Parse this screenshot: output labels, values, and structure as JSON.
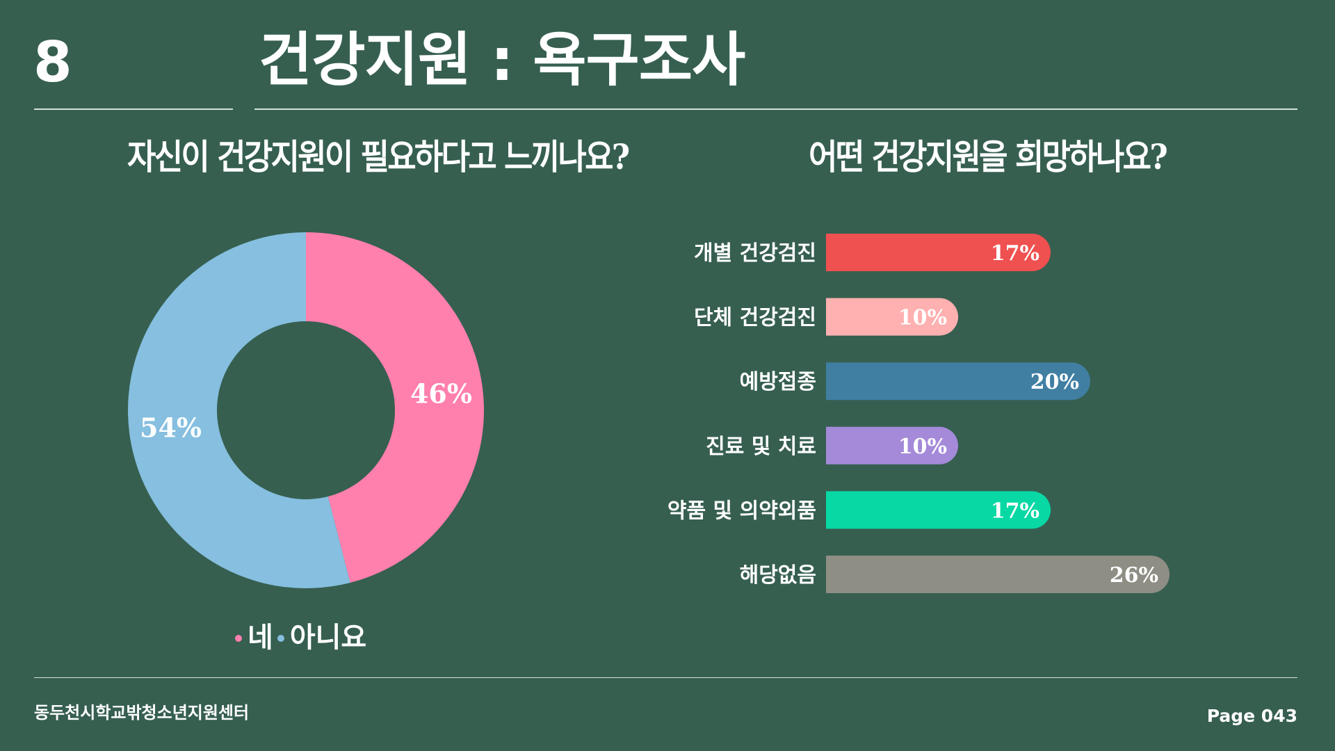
{
  "header": {
    "slide_number": "8",
    "title": "건강지원 : 욕구조사"
  },
  "footer": {
    "organization": "동두천시학교밖청소년지원센터",
    "page": "Page 043"
  },
  "chart_data": [
    {
      "type": "pie",
      "variant": "donut",
      "title": "자신이 건강지원이 필요하다고 느끼나요?",
      "categories": [
        "네",
        "아니요"
      ],
      "values": [
        46,
        54
      ],
      "labels": [
        "46%",
        "54%"
      ],
      "colors": [
        "#ff7fad",
        "#86bfdf"
      ],
      "legend": "bottom"
    },
    {
      "type": "bar",
      "orientation": "horizontal",
      "title": "어떤 건강지원을 희망하나요?",
      "categories": [
        "개별 건강검진",
        "단체 건강검진",
        "예방접종",
        "진료 및 치료",
        "약품 및 의약외품",
        "해당없음"
      ],
      "values": [
        17,
        10,
        20,
        10,
        17,
        26
      ],
      "labels": [
        "17%",
        "10%",
        "20%",
        "10%",
        "17%",
        "26%"
      ],
      "colors": [
        "#ef5050",
        "#ffb0b0",
        "#407fa2",
        "#a48ad8",
        "#08d8a4",
        "#8e8e84"
      ],
      "grid": false
    }
  ]
}
